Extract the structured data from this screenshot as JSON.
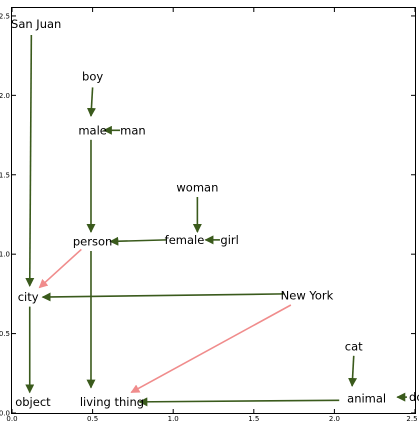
{
  "chart_data": {
    "type": "scatter",
    "title": "",
    "xlabel": "",
    "ylabel": "",
    "xlim": [
      0.0,
      2.5
    ],
    "ylim": [
      0.0,
      2.55
    ],
    "x_ticks": [
      0.0,
      0.5,
      1.0,
      1.5,
      2.0,
      2.5
    ],
    "x_tick_labels": [
      "0.0",
      "0.5",
      "1.0",
      "1.5",
      "2.0",
      "2.5"
    ],
    "y_ticks": [
      0.0,
      0.5,
      1.0,
      1.5,
      2.0,
      2.5
    ],
    "y_tick_labels": [
      "0.0",
      "0.5",
      "1.0",
      "1.5",
      "2.0",
      "2.5"
    ],
    "grid": false,
    "colors": {
      "hypernym_arrow": "#3a5a1c",
      "analogy_arrow": "#f08c8c"
    },
    "points": [
      {
        "id": "san-juan",
        "label": "San Juan",
        "x": 0.15,
        "y": 2.45
      },
      {
        "id": "boy",
        "label": "boy",
        "x": 0.5,
        "y": 2.12
      },
      {
        "id": "male",
        "label": "male",
        "x": 0.5,
        "y": 1.78
      },
      {
        "id": "man",
        "label": "man",
        "x": 0.75,
        "y": 1.78
      },
      {
        "id": "woman",
        "label": "woman",
        "x": 1.15,
        "y": 1.42
      },
      {
        "id": "person",
        "label": "person",
        "x": 0.5,
        "y": 1.08
      },
      {
        "id": "female",
        "label": "female",
        "x": 1.07,
        "y": 1.09
      },
      {
        "id": "girl",
        "label": "girl",
        "x": 1.35,
        "y": 1.09
      },
      {
        "id": "city",
        "label": "city",
        "x": 0.1,
        "y": 0.73
      },
      {
        "id": "new-york",
        "label": "New York",
        "x": 1.83,
        "y": 0.74
      },
      {
        "id": "cat",
        "label": "cat",
        "x": 2.12,
        "y": 0.42
      },
      {
        "id": "object",
        "label": "object",
        "x": 0.13,
        "y": 0.07
      },
      {
        "id": "living-thing",
        "label": "living thing",
        "x": 0.62,
        "y": 0.07
      },
      {
        "id": "animal",
        "label": "animal",
        "x": 2.2,
        "y": 0.09
      },
      {
        "id": "dog",
        "label": "dog",
        "x": 2.53,
        "y": 0.1
      }
    ],
    "arrows": [
      {
        "id": "san-juan-to-city",
        "kind": "hypernym",
        "from": [
          0.12,
          2.38
        ],
        "to": [
          0.11,
          0.8
        ]
      },
      {
        "id": "boy-to-male",
        "kind": "hypernym",
        "from": [
          0.5,
          2.05
        ],
        "to": [
          0.49,
          1.87
        ]
      },
      {
        "id": "man-to-male",
        "kind": "hypernym",
        "from": [
          0.67,
          1.78
        ],
        "to": [
          0.57,
          1.78
        ]
      },
      {
        "id": "male-to-person",
        "kind": "hypernym",
        "from": [
          0.49,
          1.72
        ],
        "to": [
          0.49,
          1.14
        ]
      },
      {
        "id": "woman-to-female",
        "kind": "hypernym",
        "from": [
          1.15,
          1.36
        ],
        "to": [
          1.15,
          1.14
        ]
      },
      {
        "id": "girl-to-female",
        "kind": "hypernym",
        "from": [
          1.29,
          1.09
        ],
        "to": [
          1.2,
          1.09
        ]
      },
      {
        "id": "female-to-person",
        "kind": "hypernym",
        "from": [
          0.96,
          1.09
        ],
        "to": [
          0.61,
          1.08
        ]
      },
      {
        "id": "person-to-city",
        "kind": "analogy",
        "from": [
          0.43,
          1.03
        ],
        "to": [
          0.17,
          0.79
        ]
      },
      {
        "id": "person-to-living-thing",
        "kind": "hypernym",
        "from": [
          0.49,
          1.02
        ],
        "to": [
          0.49,
          0.16
        ]
      },
      {
        "id": "new-york-to-city",
        "kind": "hypernym",
        "from": [
          1.69,
          0.75
        ],
        "to": [
          0.19,
          0.73
        ]
      },
      {
        "id": "city-to-object",
        "kind": "hypernym",
        "from": [
          0.11,
          0.67
        ],
        "to": [
          0.11,
          0.13
        ]
      },
      {
        "id": "new-york-to-living-thing",
        "kind": "analogy",
        "from": [
          1.73,
          0.68
        ],
        "to": [
          0.74,
          0.13
        ]
      },
      {
        "id": "cat-to-animal",
        "kind": "hypernym",
        "from": [
          2.12,
          0.36
        ],
        "to": [
          2.11,
          0.17
        ]
      },
      {
        "id": "dog-to-animal",
        "kind": "hypernym",
        "from": [
          2.45,
          0.1
        ],
        "to": [
          2.39,
          0.1
        ]
      },
      {
        "id": "animal-to-living-thing",
        "kind": "hypernym",
        "from": [
          2.03,
          0.08
        ],
        "to": [
          0.79,
          0.07
        ]
      }
    ]
  }
}
